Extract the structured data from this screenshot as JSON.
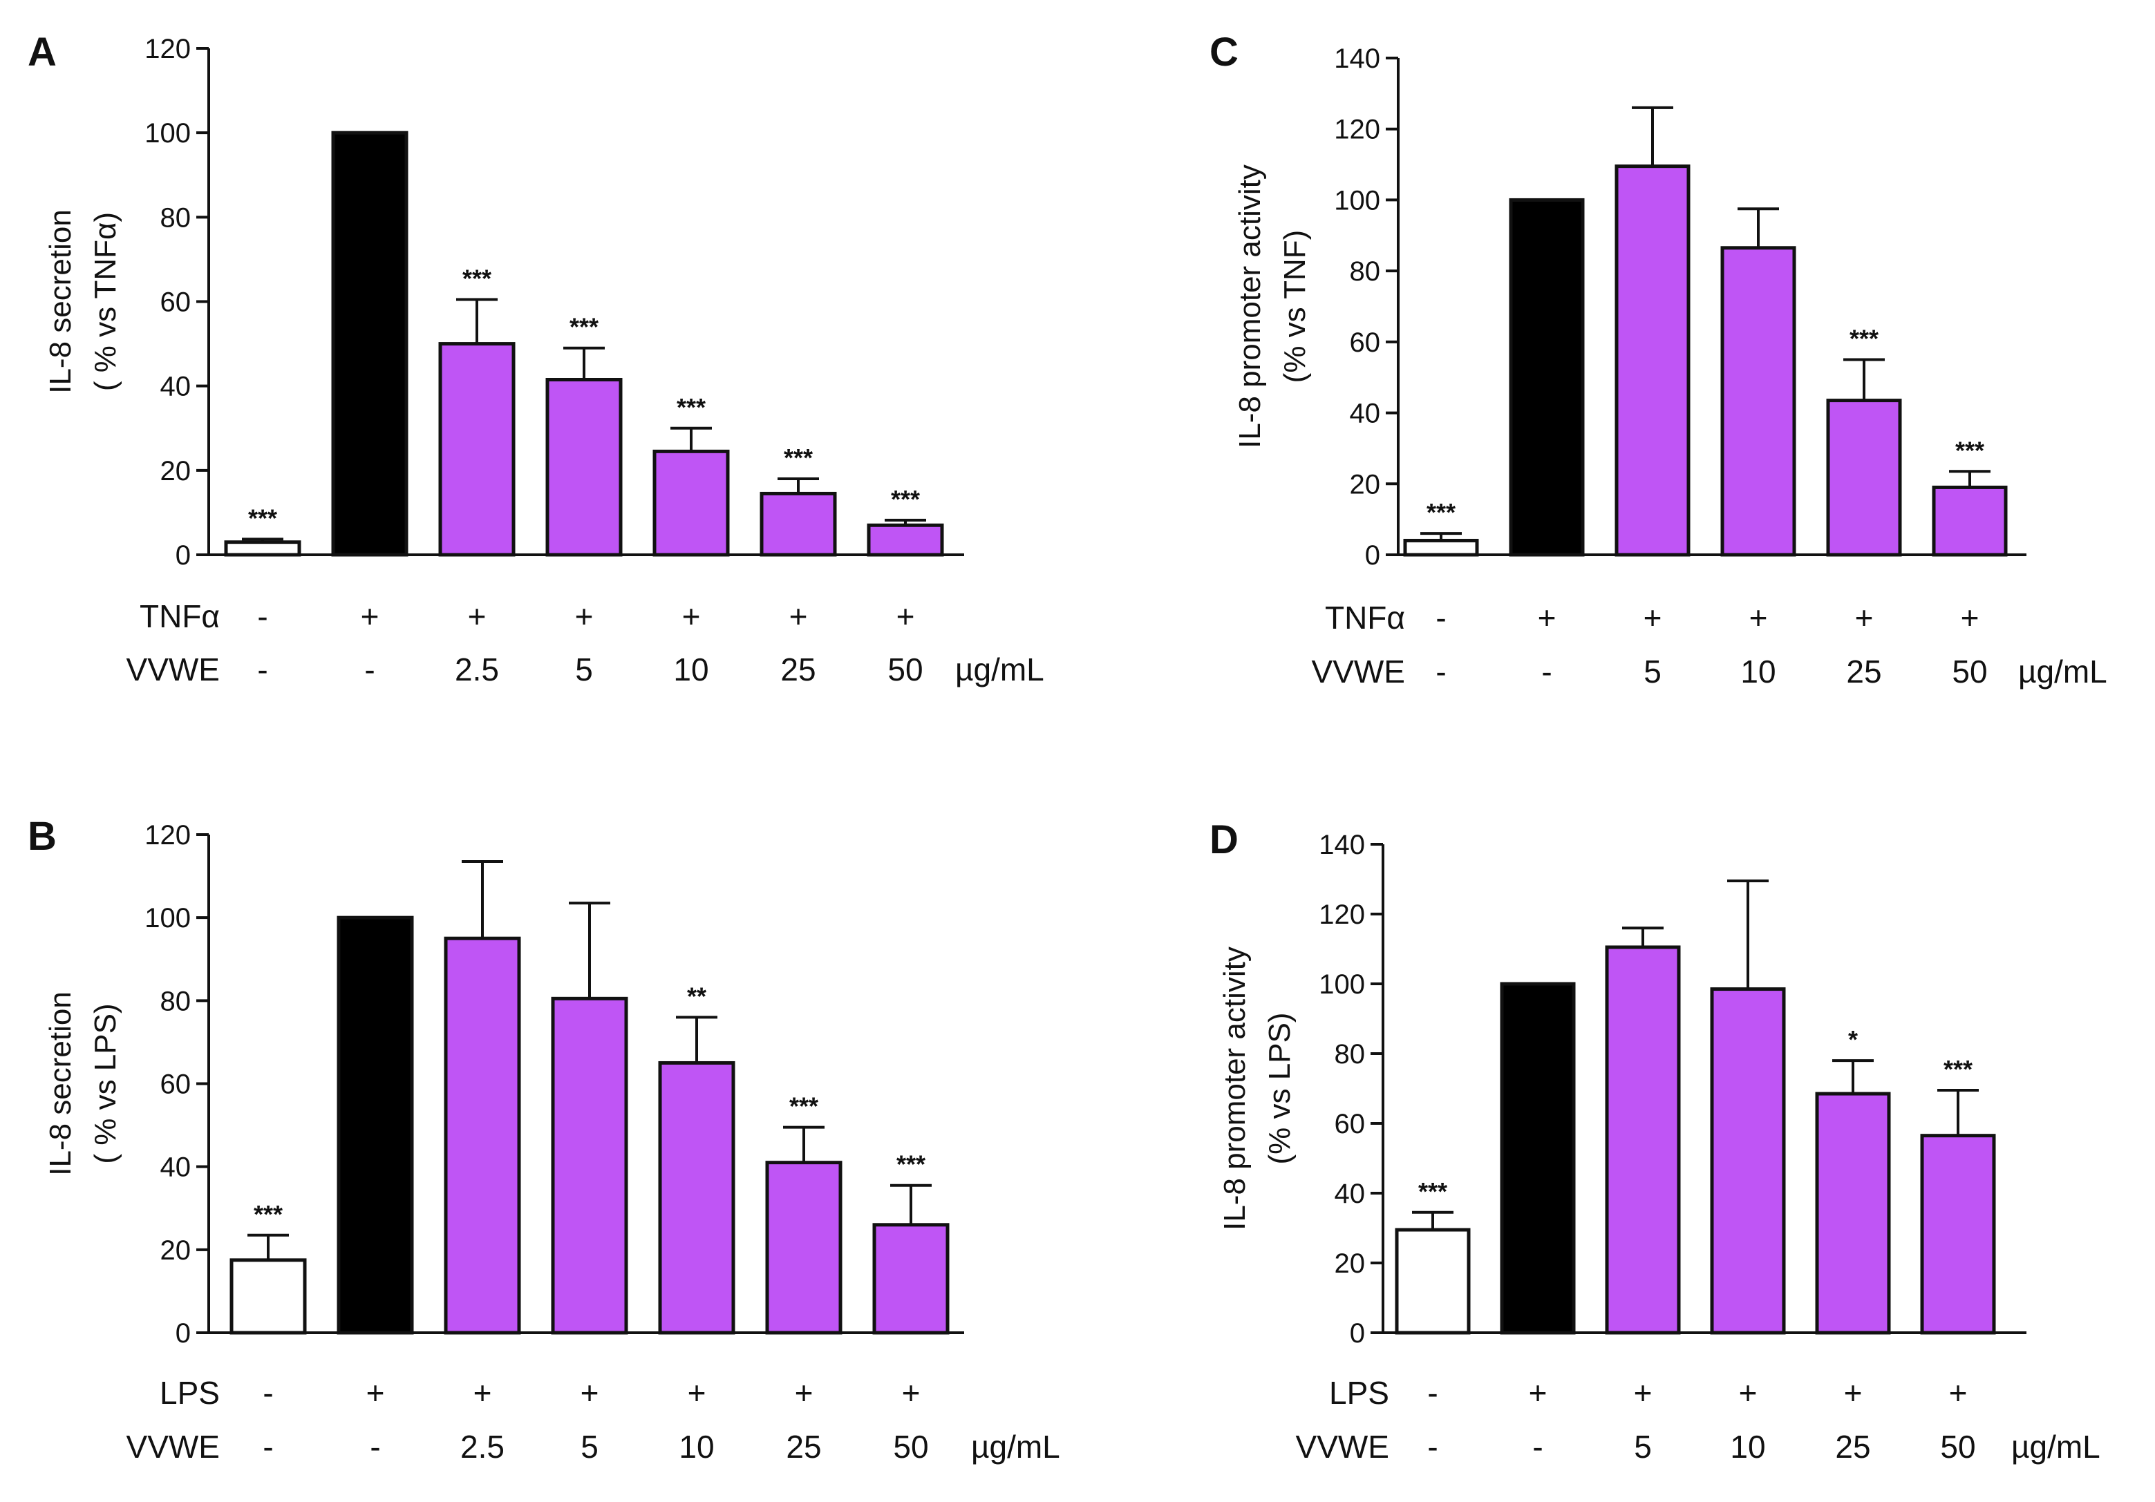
{
  "figure": {
    "fill_colors": {
      "open": "#ffffff",
      "black": "#000000",
      "purple": "#bf55f5"
    },
    "stroke_color": "#111111"
  },
  "chart_data": [
    {
      "panel": "A",
      "type": "bar",
      "ylabel_lines": [
        "IL-8 secretion",
        "( % vs TNFα)"
      ],
      "ylim": [
        0,
        120
      ],
      "yticks": [
        0,
        20,
        40,
        60,
        80,
        100,
        120
      ],
      "categories": [
        "1",
        "2",
        "3",
        "4",
        "5",
        "6",
        "7"
      ],
      "values": [
        3,
        100,
        50,
        41.5,
        24.5,
        14.5,
        7
      ],
      "errors": [
        0.7,
        0,
        10.5,
        7.5,
        5.5,
        3.5,
        1.2
      ],
      "fills": [
        "open",
        "black",
        "purple",
        "purple",
        "purple",
        "purple",
        "purple"
      ],
      "significance": [
        "***",
        "",
        "***",
        "***",
        "***",
        "***",
        "***"
      ],
      "condition_rows": [
        {
          "label": "TNFα",
          "values": [
            "-",
            "+",
            "+",
            "+",
            "+",
            "+",
            "+"
          ]
        },
        {
          "label": "VVWE",
          "values": [
            "-",
            "-",
            "2.5",
            "5",
            "10",
            "25",
            "50"
          ],
          "unit": "µg/mL"
        }
      ]
    },
    {
      "panel": "B",
      "type": "bar",
      "ylabel_lines": [
        "IL-8 secretion",
        "( % vs  LPS)"
      ],
      "ylim": [
        0,
        120
      ],
      "yticks": [
        0,
        20,
        40,
        60,
        80,
        100,
        120
      ],
      "categories": [
        "1",
        "2",
        "3",
        "4",
        "5",
        "6",
        "7"
      ],
      "values": [
        17.5,
        100,
        95,
        80.5,
        65,
        41,
        26
      ],
      "errors": [
        6,
        0,
        18.5,
        23,
        11,
        8.5,
        9.5
      ],
      "fills": [
        "open",
        "black",
        "purple",
        "purple",
        "purple",
        "purple",
        "purple"
      ],
      "significance": [
        "***",
        "",
        "",
        "",
        "**",
        "***",
        "***"
      ],
      "condition_rows": [
        {
          "label": "LPS",
          "values": [
            "-",
            "+",
            "+",
            "+",
            "+",
            "+",
            "+"
          ]
        },
        {
          "label": "VVWE",
          "values": [
            "-",
            "-",
            "2.5",
            "5",
            "10",
            "25",
            "50"
          ],
          "unit": "µg/mL"
        }
      ]
    },
    {
      "panel": "C",
      "type": "bar",
      "ylabel_lines": [
        "IL-8 promoter activity",
        "(% vs TNF)"
      ],
      "ylim": [
        0,
        140
      ],
      "yticks": [
        0,
        20,
        40,
        60,
        80,
        100,
        120,
        140
      ],
      "categories": [
        "1",
        "2",
        "3",
        "4",
        "5",
        "6"
      ],
      "values": [
        4,
        100,
        109.5,
        86.5,
        43.5,
        19
      ],
      "errors": [
        2,
        0,
        16.5,
        11,
        11.5,
        4.5
      ],
      "fills": [
        "open",
        "black",
        "purple",
        "purple",
        "purple",
        "purple"
      ],
      "significance": [
        "***",
        "",
        "",
        "",
        "***",
        "***"
      ],
      "condition_rows": [
        {
          "label": "TNFα",
          "values": [
            "-",
            "+",
            "+",
            "+",
            "+",
            "+"
          ]
        },
        {
          "label": "VVWE",
          "values": [
            "-",
            "-",
            "5",
            "10",
            "25",
            "50"
          ],
          "unit": "µg/mL"
        }
      ]
    },
    {
      "panel": "D",
      "type": "bar",
      "ylabel_lines": [
        "IL-8 promoter activity",
        "(% vs LPS)"
      ],
      "ylim": [
        0,
        140
      ],
      "yticks": [
        0,
        20,
        40,
        60,
        80,
        100,
        120,
        140
      ],
      "categories": [
        "1",
        "2",
        "3",
        "4",
        "5",
        "6"
      ],
      "values": [
        29.5,
        100,
        110.5,
        98.5,
        68.5,
        56.5
      ],
      "errors": [
        5,
        0,
        5.5,
        31,
        9.5,
        13
      ],
      "fills": [
        "open",
        "black",
        "purple",
        "purple",
        "purple",
        "purple"
      ],
      "significance": [
        "***",
        "",
        "",
        "",
        "*",
        "***"
      ],
      "condition_rows": [
        {
          "label": "LPS",
          "values": [
            "-",
            "+",
            "+",
            "+",
            "+",
            "+"
          ]
        },
        {
          "label": "VVWE",
          "values": [
            "-",
            "-",
            "5",
            "10",
            "25",
            "50"
          ],
          "unit": "µg/mL"
        }
      ]
    }
  ]
}
